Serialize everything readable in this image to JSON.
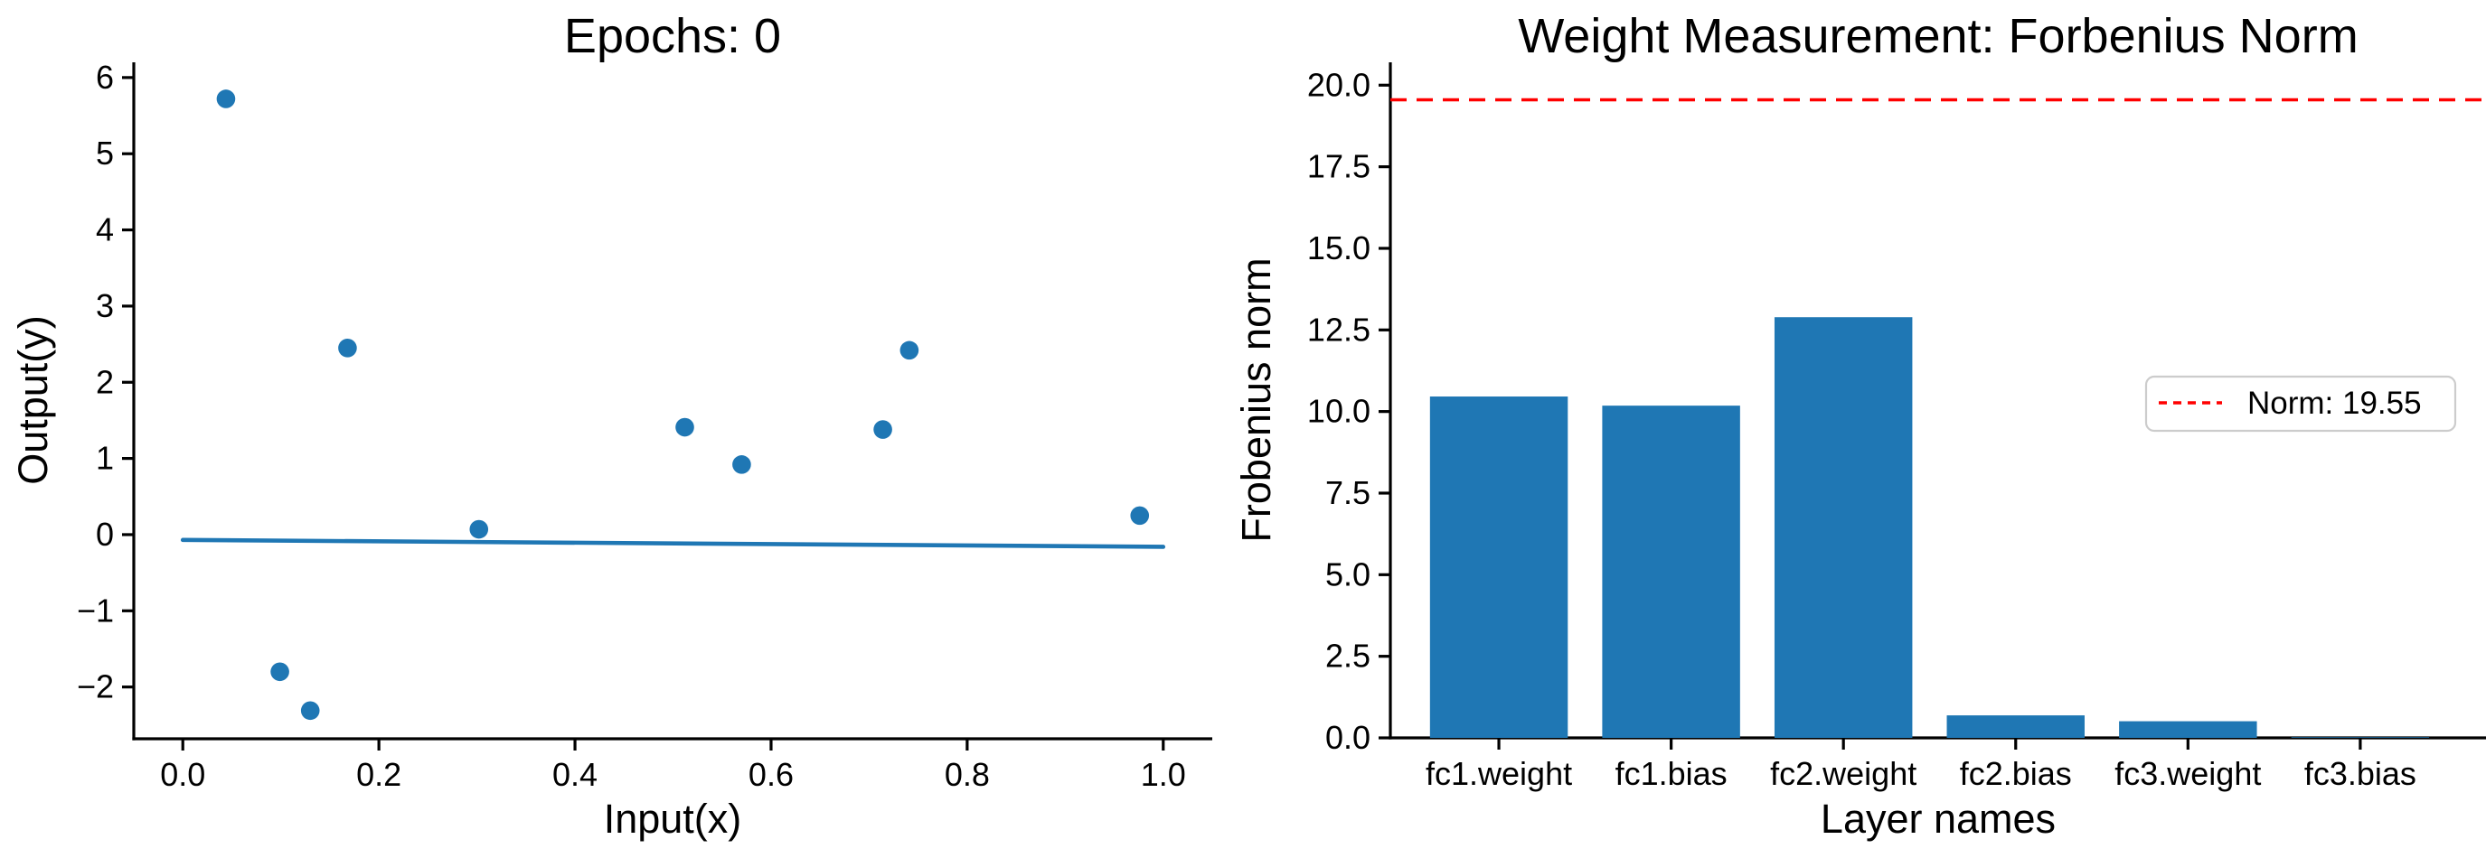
{
  "figure": {
    "background": "#ffffff",
    "accent_blue": "#1f77b4",
    "accent_red": "#ff0000",
    "text_color": "#000000",
    "legend_border_color": "#cccccc"
  },
  "chart_data": [
    {
      "type": "scatter",
      "title": "Epochs: 0",
      "xlabel": "Input(x)",
      "ylabel": "Output(y)",
      "xlim": [
        -0.05,
        1.05
      ],
      "ylim": [
        -2.68,
        6.2
      ],
      "grid": false,
      "xticks": [
        {
          "v": 0.0,
          "label": "0.0"
        },
        {
          "v": 0.2,
          "label": "0.2"
        },
        {
          "v": 0.4,
          "label": "0.4"
        },
        {
          "v": 0.6,
          "label": "0.6"
        },
        {
          "v": 0.8,
          "label": "0.8"
        },
        {
          "v": 1.0,
          "label": "1.0"
        }
      ],
      "yticks": [
        {
          "v": 6,
          "label": "6"
        },
        {
          "v": 5,
          "label": "5"
        },
        {
          "v": 4,
          "label": "4"
        },
        {
          "v": 3,
          "label": "3"
        },
        {
          "v": 2,
          "label": "2"
        },
        {
          "v": 1,
          "label": "1"
        },
        {
          "v": 0,
          "label": "0"
        },
        {
          "v": -1,
          "label": "−1"
        },
        {
          "v": -2,
          "label": "−2"
        }
      ],
      "scatter_points": [
        [
          0.044,
          5.72
        ],
        [
          0.099,
          -1.8
        ],
        [
          0.13,
          -2.31
        ],
        [
          0.168,
          2.45
        ],
        [
          0.302,
          0.07
        ],
        [
          0.512,
          1.41
        ],
        [
          0.57,
          0.92
        ],
        [
          0.714,
          1.38
        ],
        [
          0.741,
          2.42
        ],
        [
          0.976,
          0.25
        ]
      ],
      "prediction_line": {
        "x": [
          0.0,
          1.0
        ],
        "y": [
          -0.07,
          -0.16
        ]
      },
      "marker_color": "#1f77b4",
      "line_color": "#1f77b4"
    },
    {
      "type": "bar",
      "title": "Weight Measurement: Forbenius Norm",
      "xlabel": "Layer names",
      "ylabel": "Frobenius norm",
      "xlim": [
        -0.63,
        5.73
      ],
      "ylim": [
        0,
        20.7
      ],
      "grid": false,
      "categories": [
        "fc1.weight",
        "fc1.bias",
        "fc2.weight",
        "fc2.bias",
        "fc3.weight",
        "fc3.bias"
      ],
      "values": [
        10.46,
        10.18,
        12.89,
        0.69,
        0.51,
        0.02
      ],
      "yticks": [
        {
          "v": 0.0,
          "label": "0.0"
        },
        {
          "v": 2.5,
          "label": "2.5"
        },
        {
          "v": 5.0,
          "label": "5.0"
        },
        {
          "v": 7.5,
          "label": "7.5"
        },
        {
          "v": 10.0,
          "label": "10.0"
        },
        {
          "v": 12.5,
          "label": "12.5"
        },
        {
          "v": 15.0,
          "label": "15.0"
        },
        {
          "v": 17.5,
          "label": "17.5"
        },
        {
          "v": 20.0,
          "label": "20.0"
        }
      ],
      "bar_color": "#1f77b4",
      "hline": {
        "value": 19.55,
        "color": "#ff0000",
        "style": "dashed"
      },
      "legend": {
        "label": "Norm: 19.55",
        "line_color": "#ff0000",
        "position": "center right"
      }
    }
  ]
}
